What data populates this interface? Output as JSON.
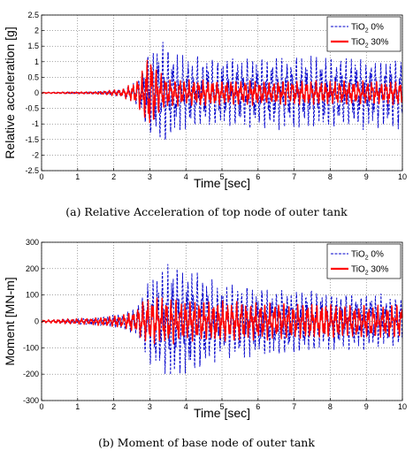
{
  "chart_data": [
    {
      "type": "line",
      "title": "",
      "xlabel": "Time [sec]",
      "ylabel": "Relative acceleration [g]",
      "xlim": [
        0,
        10
      ],
      "ylim": [
        -2.5,
        2.5
      ],
      "xticks": [
        0,
        1,
        2,
        3,
        4,
        5,
        6,
        7,
        8,
        9,
        10
      ],
      "yticks": [
        -2.5,
        -2,
        -1.5,
        -1,
        -0.5,
        0,
        0.5,
        1,
        1.5,
        2,
        2.5
      ],
      "xtick_labels": [
        "0",
        "1",
        "2",
        "3",
        "4",
        "5",
        "6",
        "7",
        "8",
        "9",
        "10"
      ],
      "ytick_labels": [
        "-2.5",
        "-2",
        "-1.5",
        "-1",
        "-0.5",
        "0",
        "0.5",
        "1",
        "1.5",
        "2",
        "2.5"
      ],
      "grid": true,
      "legend_position": "top-right",
      "series": [
        {
          "name": "TiO2 0%",
          "legend_main": "TiO",
          "legend_sub": "2",
          "legend_rest": " 0%",
          "color": "#0000cc",
          "style": "dashed",
          "envelope": {
            "t": [
              0,
              1.5,
              2.2,
              2.6,
              2.8,
              3.0,
              3.2,
              3.4,
              3.6,
              4.0,
              5.0,
              6.0,
              7.0,
              8.0,
              9.0,
              10.0
            ],
            "amp": [
              0.02,
              0.04,
              0.12,
              0.35,
              0.8,
              1.6,
              1.7,
              1.9,
              1.45,
              1.25,
              1.2,
              1.2,
              1.25,
              1.25,
              1.2,
              1.2
            ]
          }
        },
        {
          "name": "TiO2 30%",
          "legend_main": "TiO",
          "legend_sub": "2",
          "legend_rest": " 30%",
          "color": "#ff0000",
          "style": "solid",
          "envelope": {
            "t": [
              0,
              1.5,
              2.2,
              2.6,
              2.8,
              3.0,
              3.2,
              3.5,
              4.0,
              5.0,
              6.0,
              7.0,
              8.0,
              9.0,
              10.0
            ],
            "amp": [
              0.02,
              0.04,
              0.12,
              0.35,
              0.8,
              1.35,
              0.8,
              0.5,
              0.45,
              0.42,
              0.42,
              0.4,
              0.4,
              0.4,
              0.4
            ]
          }
        }
      ]
    },
    {
      "type": "line",
      "title": "",
      "xlabel": "Time [sec]",
      "ylabel": "Moment [MN-m]",
      "xlim": [
        0,
        10
      ],
      "ylim": [
        -300,
        300
      ],
      "xticks": [
        0,
        1,
        2,
        3,
        4,
        5,
        6,
        7,
        8,
        9,
        10
      ],
      "yticks": [
        -300,
        -200,
        -100,
        0,
        100,
        200,
        300
      ],
      "xtick_labels": [
        "0",
        "1",
        "2",
        "3",
        "4",
        "5",
        "6",
        "7",
        "8",
        "9",
        "10"
      ],
      "ytick_labels": [
        "-300",
        "-200",
        "-100",
        "0",
        "100",
        "200",
        "300"
      ],
      "grid": true,
      "legend_position": "top-right",
      "series": [
        {
          "name": "TiO2 0%",
          "legend_main": "TiO",
          "legend_sub": "2",
          "legend_rest": " 0%",
          "color": "#0000cc",
          "style": "dashed",
          "envelope": {
            "t": [
              0,
              1.5,
              2.2,
              2.6,
              2.8,
              3.0,
              3.5,
              4.0,
              4.5,
              5.0,
              6.0,
              7.0,
              8.0,
              9.0,
              10.0
            ],
            "amp": [
              5,
              15,
              30,
              50,
              120,
              170,
              230,
              230,
              180,
              150,
              140,
              130,
              120,
              110,
              100
            ]
          }
        },
        {
          "name": "TiO2 30%",
          "legend_main": "TiO",
          "legend_sub": "2",
          "legend_rest": " 30%",
          "color": "#ff0000",
          "style": "solid",
          "envelope": {
            "t": [
              0,
              1.5,
              2.2,
              2.6,
              2.8,
              3.0,
              3.5,
              4.0,
              5.0,
              6.0,
              7.0,
              8.0,
              9.0,
              10.0
            ],
            "amp": [
              5,
              15,
              25,
              45,
              80,
              95,
              90,
              85,
              80,
              75,
              70,
              70,
              65,
              65
            ]
          }
        }
      ]
    }
  ],
  "captions": [
    "(a) Relative Acceleration of top node of outer tank",
    "(b) Moment of base node of outer tank"
  ]
}
